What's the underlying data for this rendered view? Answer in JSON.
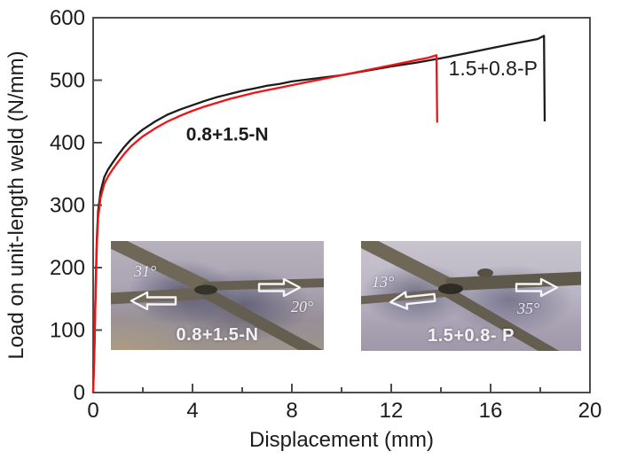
{
  "chart_data": {
    "type": "line",
    "title": "",
    "xlabel": "Displacement (mm)",
    "ylabel": "Load on unit-length weld (N/mm)",
    "xlim": [
      0,
      20
    ],
    "ylim": [
      0,
      600
    ],
    "xticks": [
      0,
      4,
      8,
      12,
      16,
      20
    ],
    "xminorticks": [
      2,
      6,
      10,
      14,
      18
    ],
    "yticks": [
      0,
      100,
      200,
      300,
      400,
      500,
      600
    ],
    "grid": false,
    "legend_position": "none",
    "axis_color": "#4d4d4d",
    "series": [
      {
        "name": "1.5+0.8-P",
        "color": "#1c1c1c",
        "points": [
          [
            0,
            0
          ],
          [
            0.05,
            70
          ],
          [
            0.1,
            170
          ],
          [
            0.15,
            248
          ],
          [
            0.2,
            290
          ],
          [
            0.3,
            322
          ],
          [
            0.45,
            345
          ],
          [
            0.6,
            357
          ],
          [
            0.8,
            369
          ],
          [
            1,
            380
          ],
          [
            1.25,
            393
          ],
          [
            1.5,
            404
          ],
          [
            1.75,
            413
          ],
          [
            2,
            421
          ],
          [
            2.5,
            434
          ],
          [
            3,
            445
          ],
          [
            3.5,
            453
          ],
          [
            4,
            460
          ],
          [
            4.5,
            467
          ],
          [
            5,
            473
          ],
          [
            5.5,
            478
          ],
          [
            6,
            483
          ],
          [
            6.5,
            487
          ],
          [
            7,
            491
          ],
          [
            7.5,
            494
          ],
          [
            8,
            498
          ],
          [
            9,
            503
          ],
          [
            10,
            508
          ],
          [
            11,
            515
          ],
          [
            12,
            522
          ],
          [
            13,
            528
          ],
          [
            14,
            535
          ],
          [
            15,
            543
          ],
          [
            16,
            551
          ],
          [
            17,
            559
          ],
          [
            17.9,
            566
          ],
          [
            18.15,
            571
          ],
          [
            18.18,
            434
          ]
        ]
      },
      {
        "name": "0.8+1.5-N",
        "color": "#ee1414",
        "points": [
          [
            0,
            0
          ],
          [
            0.05,
            65
          ],
          [
            0.1,
            160
          ],
          [
            0.15,
            238
          ],
          [
            0.2,
            280
          ],
          [
            0.3,
            312
          ],
          [
            0.45,
            334
          ],
          [
            0.6,
            346
          ],
          [
            0.8,
            358
          ],
          [
            1,
            369
          ],
          [
            1.25,
            382
          ],
          [
            1.5,
            393
          ],
          [
            1.75,
            402
          ],
          [
            2,
            410
          ],
          [
            2.5,
            423
          ],
          [
            3,
            434
          ],
          [
            3.5,
            443
          ],
          [
            4,
            451
          ],
          [
            4.5,
            458
          ],
          [
            5,
            464
          ],
          [
            5.5,
            470
          ],
          [
            6,
            475
          ],
          [
            6.5,
            480
          ],
          [
            7,
            484
          ],
          [
            7.5,
            488
          ],
          [
            8,
            492
          ],
          [
            9,
            500
          ],
          [
            10,
            508
          ],
          [
            11,
            516
          ],
          [
            12,
            524
          ],
          [
            13,
            532
          ],
          [
            13.5,
            536
          ],
          [
            13.82,
            540
          ],
          [
            13.85,
            432
          ]
        ]
      }
    ],
    "annotations": [
      {
        "text": "0.8+1.5-N",
        "color": "#ee1414",
        "x": 5.4,
        "y": 415,
        "bold": true,
        "size": 21
      },
      {
        "text": "1.5+0.8-P",
        "color": "#1c1c1c",
        "x": 16.1,
        "y": 519,
        "bold": false,
        "size": 23
      }
    ]
  },
  "insets": [
    {
      "label": "0.8+1.5-N",
      "angles": [
        {
          "text": "31°"
        },
        {
          "text": "20°"
        }
      ]
    },
    {
      "label": "1.5+0.8- P",
      "angles": [
        {
          "text": "13°"
        },
        {
          "text": "35°"
        }
      ]
    }
  ]
}
